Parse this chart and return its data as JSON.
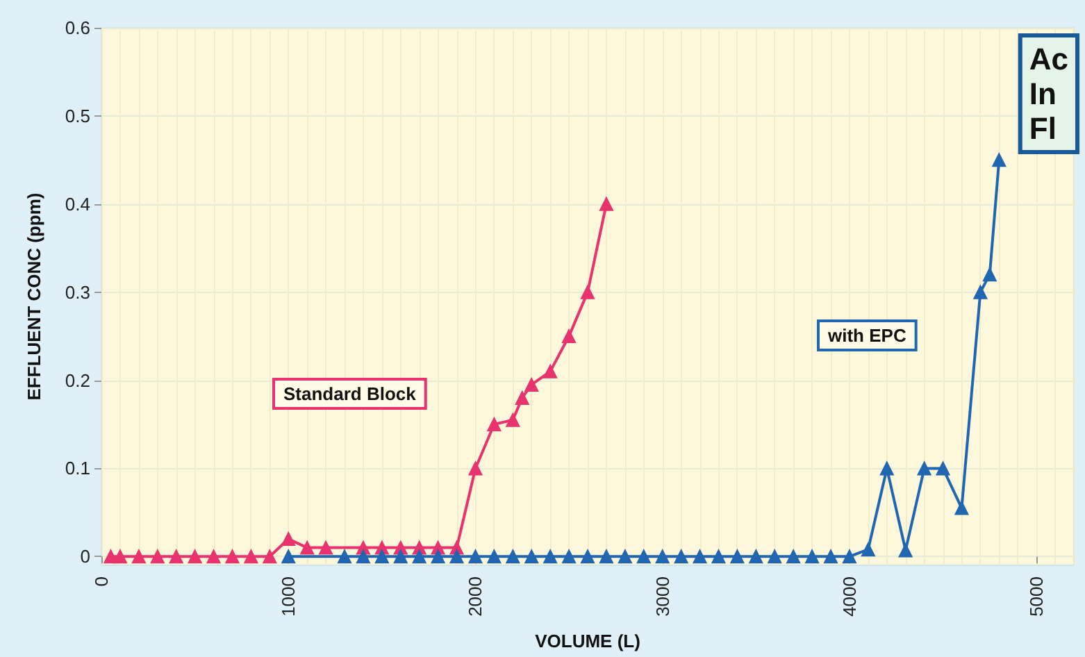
{
  "chart_data": {
    "type": "line",
    "xlabel": "VOLUME (L)",
    "ylabel": "EFFLUENT CONC (ppm)",
    "xlim": [
      0,
      5200
    ],
    "xticks": [
      0,
      1000,
      2000,
      3000,
      4000,
      5000
    ],
    "ylim": [
      -0.01,
      0.6
    ],
    "yticks": [
      0,
      0.1,
      0.2,
      0.3,
      0.4,
      0.5,
      0.6
    ],
    "grid": true,
    "legend": false,
    "marker": "triangle",
    "line_style": "solid",
    "annotations": [
      "Ac\nIn\nFl"
    ],
    "series": [
      {
        "name": "Standard Block",
        "color": "#e8336e",
        "x": [
          50,
          100,
          200,
          300,
          400,
          500,
          600,
          700,
          800,
          900,
          1000,
          1100,
          1200,
          1400,
          1500,
          1600,
          1700,
          1800,
          1900,
          2000,
          2100,
          2200,
          2250,
          2300,
          2400,
          2500,
          2600,
          2700
        ],
        "values": [
          0,
          0,
          0,
          0,
          0,
          0,
          0,
          0,
          0,
          0,
          0.02,
          0.01,
          0.01,
          0.01,
          0.01,
          0.01,
          0.01,
          0.01,
          0.01,
          0.1,
          0.15,
          0.155,
          0.18,
          0.195,
          0.21,
          0.25,
          0.3,
          0.4
        ]
      },
      {
        "name": "with EPC",
        "color": "#2166b0",
        "x": [
          1000,
          1300,
          1400,
          1500,
          1600,
          1700,
          1800,
          1900,
          2000,
          2100,
          2200,
          2300,
          2400,
          2500,
          2600,
          2700,
          2800,
          2900,
          3000,
          3100,
          3200,
          3300,
          3400,
          3500,
          3600,
          3700,
          3800,
          3900,
          4000,
          4100,
          4200,
          4300,
          4400,
          4500,
          4600,
          4700,
          4750,
          4800
        ],
        "values": [
          0,
          0,
          0,
          0,
          0,
          0,
          0,
          0,
          0,
          0,
          0,
          0,
          0,
          0,
          0,
          0,
          0,
          0,
          0,
          0,
          0,
          0,
          0,
          0,
          0,
          0,
          0,
          0,
          0,
          0.008,
          0.1,
          0.007,
          0.1,
          0.1,
          0.055,
          0.3,
          0.32,
          0.45
        ]
      }
    ]
  }
}
